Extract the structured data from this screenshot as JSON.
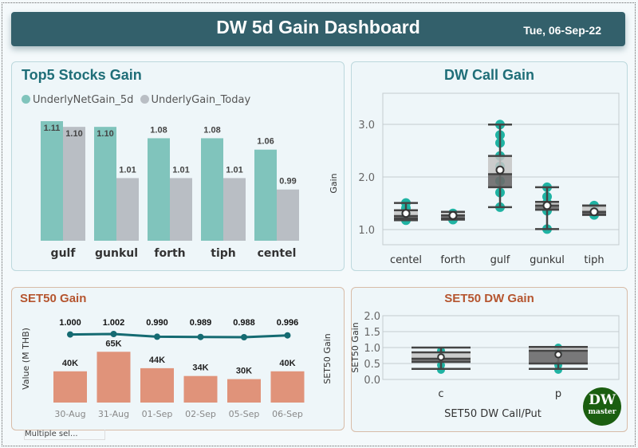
{
  "header": {
    "title": "DW 5d Gain Dashboard",
    "date": "Tue, 06-Sep-22"
  },
  "top5": {
    "title": "Top5 Stocks Gain",
    "legend": [
      "UnderlyNetGain_5d",
      "UnderlyGain_Today"
    ],
    "colors": [
      "#80c4bc",
      "#b9bec4"
    ]
  },
  "dwcall": {
    "title": "DW Call Gain"
  },
  "set50": {
    "title": "SET50 Gain",
    "slicer": "Multiple sel..."
  },
  "set50dw": {
    "title": "SET50 DW Gain"
  },
  "logo": {
    "line1": "DW",
    "line2": "master"
  },
  "chart_data": [
    {
      "type": "bar",
      "title": "Top5 Stocks Gain",
      "categories": [
        "gulf",
        "gunkul",
        "forth",
        "tiph",
        "centel"
      ],
      "series": [
        {
          "name": "UnderlyNetGain_5d",
          "values": [
            1.11,
            1.1,
            1.08,
            1.08,
            1.06
          ]
        },
        {
          "name": "UnderlyGain_Today",
          "values": [
            1.1,
            1.01,
            1.01,
            1.01,
            0.99
          ]
        }
      ],
      "labels": [
        [
          "1.11",
          "1.10",
          "1.08",
          "1.08",
          "1.06"
        ],
        [
          "1.10",
          "1.01",
          "1.01",
          "1.01",
          "0.99"
        ]
      ],
      "ylim": [
        0.9,
        1.11
      ],
      "legend": "top-left"
    },
    {
      "type": "box",
      "title": "DW Call Gain",
      "ylabel": "Gain",
      "categories": [
        "centel",
        "forth",
        "gulf",
        "gunkul",
        "tiph"
      ],
      "yticks": [
        "1.0",
        "2.0",
        "3.0"
      ],
      "ylim": [
        0.7,
        3.6
      ],
      "boxes": [
        {
          "min": 1.17,
          "q1": 1.2,
          "median": 1.25,
          "q3": 1.36,
          "max": 1.5,
          "mean": 1.3,
          "points": [
            1.17,
            1.2,
            1.3,
            1.4,
            1.5
          ]
        },
        {
          "min": 1.18,
          "q1": 1.2,
          "median": 1.26,
          "q3": 1.33,
          "max": 1.33,
          "mean": 1.26,
          "points": [
            1.18,
            1.25,
            1.3
          ]
        },
        {
          "min": 1.42,
          "q1": 1.8,
          "median": 2.05,
          "q3": 2.4,
          "max": 3.0,
          "mean": 2.13,
          "points": [
            1.42,
            1.7,
            1.92,
            2.2,
            2.4,
            2.65,
            2.8,
            3.0
          ]
        },
        {
          "min": 1.0,
          "q1": 1.37,
          "median": 1.45,
          "q3": 1.52,
          "max": 1.8,
          "mean": 1.45,
          "points": [
            1.0,
            1.35,
            1.5,
            1.62,
            1.8
          ]
        },
        {
          "min": 1.27,
          "q1": 1.28,
          "median": 1.33,
          "q3": 1.45,
          "max": 1.45,
          "mean": 1.33,
          "points": [
            1.27,
            1.33,
            1.45
          ]
        }
      ]
    },
    {
      "type": "bar+line",
      "title": "SET50 Gain",
      "ylabel": "Value (M THB)",
      "y2label": "SET50 Gain",
      "categories": [
        "30-Aug",
        "31-Aug",
        "01-Sep",
        "02-Sep",
        "05-Sep",
        "06-Sep"
      ],
      "bars": [
        40,
        65,
        44,
        34,
        30,
        40
      ],
      "bar_labels": [
        "40K",
        "65K",
        "44K",
        "34K",
        "30K",
        "40K"
      ],
      "line": [
        1.0,
        1.002,
        0.99,
        0.989,
        0.988,
        0.996
      ],
      "line_labels": [
        "1.000",
        "1.002",
        "0.990",
        "0.989",
        "0.988",
        "0.996"
      ],
      "bar_color": "#e0937a",
      "line_color": "#156b72"
    },
    {
      "type": "box",
      "title": "SET50 DW Gain",
      "xlabel": "SET50 DW Call/Put",
      "ylabel": "SET50 Gain",
      "categories": [
        "c",
        "p"
      ],
      "yticks": [
        "0.0",
        "0.5",
        "1.0",
        "1.5",
        "2.0"
      ],
      "ylim": [
        0,
        2
      ],
      "boxes": [
        {
          "min": 0.33,
          "q1": 0.55,
          "median": 0.65,
          "q3": 0.85,
          "max": 1.0,
          "mean": 0.7,
          "points": [
            0.3,
            0.45,
            0.75,
            0.9
          ]
        },
        {
          "min": 0.33,
          "q1": 0.5,
          "median": 0.9,
          "q3": 1.02,
          "max": 1.02,
          "mean": 0.78,
          "points": [
            0.3,
            0.45,
            0.85,
            1.0
          ]
        }
      ]
    }
  ]
}
